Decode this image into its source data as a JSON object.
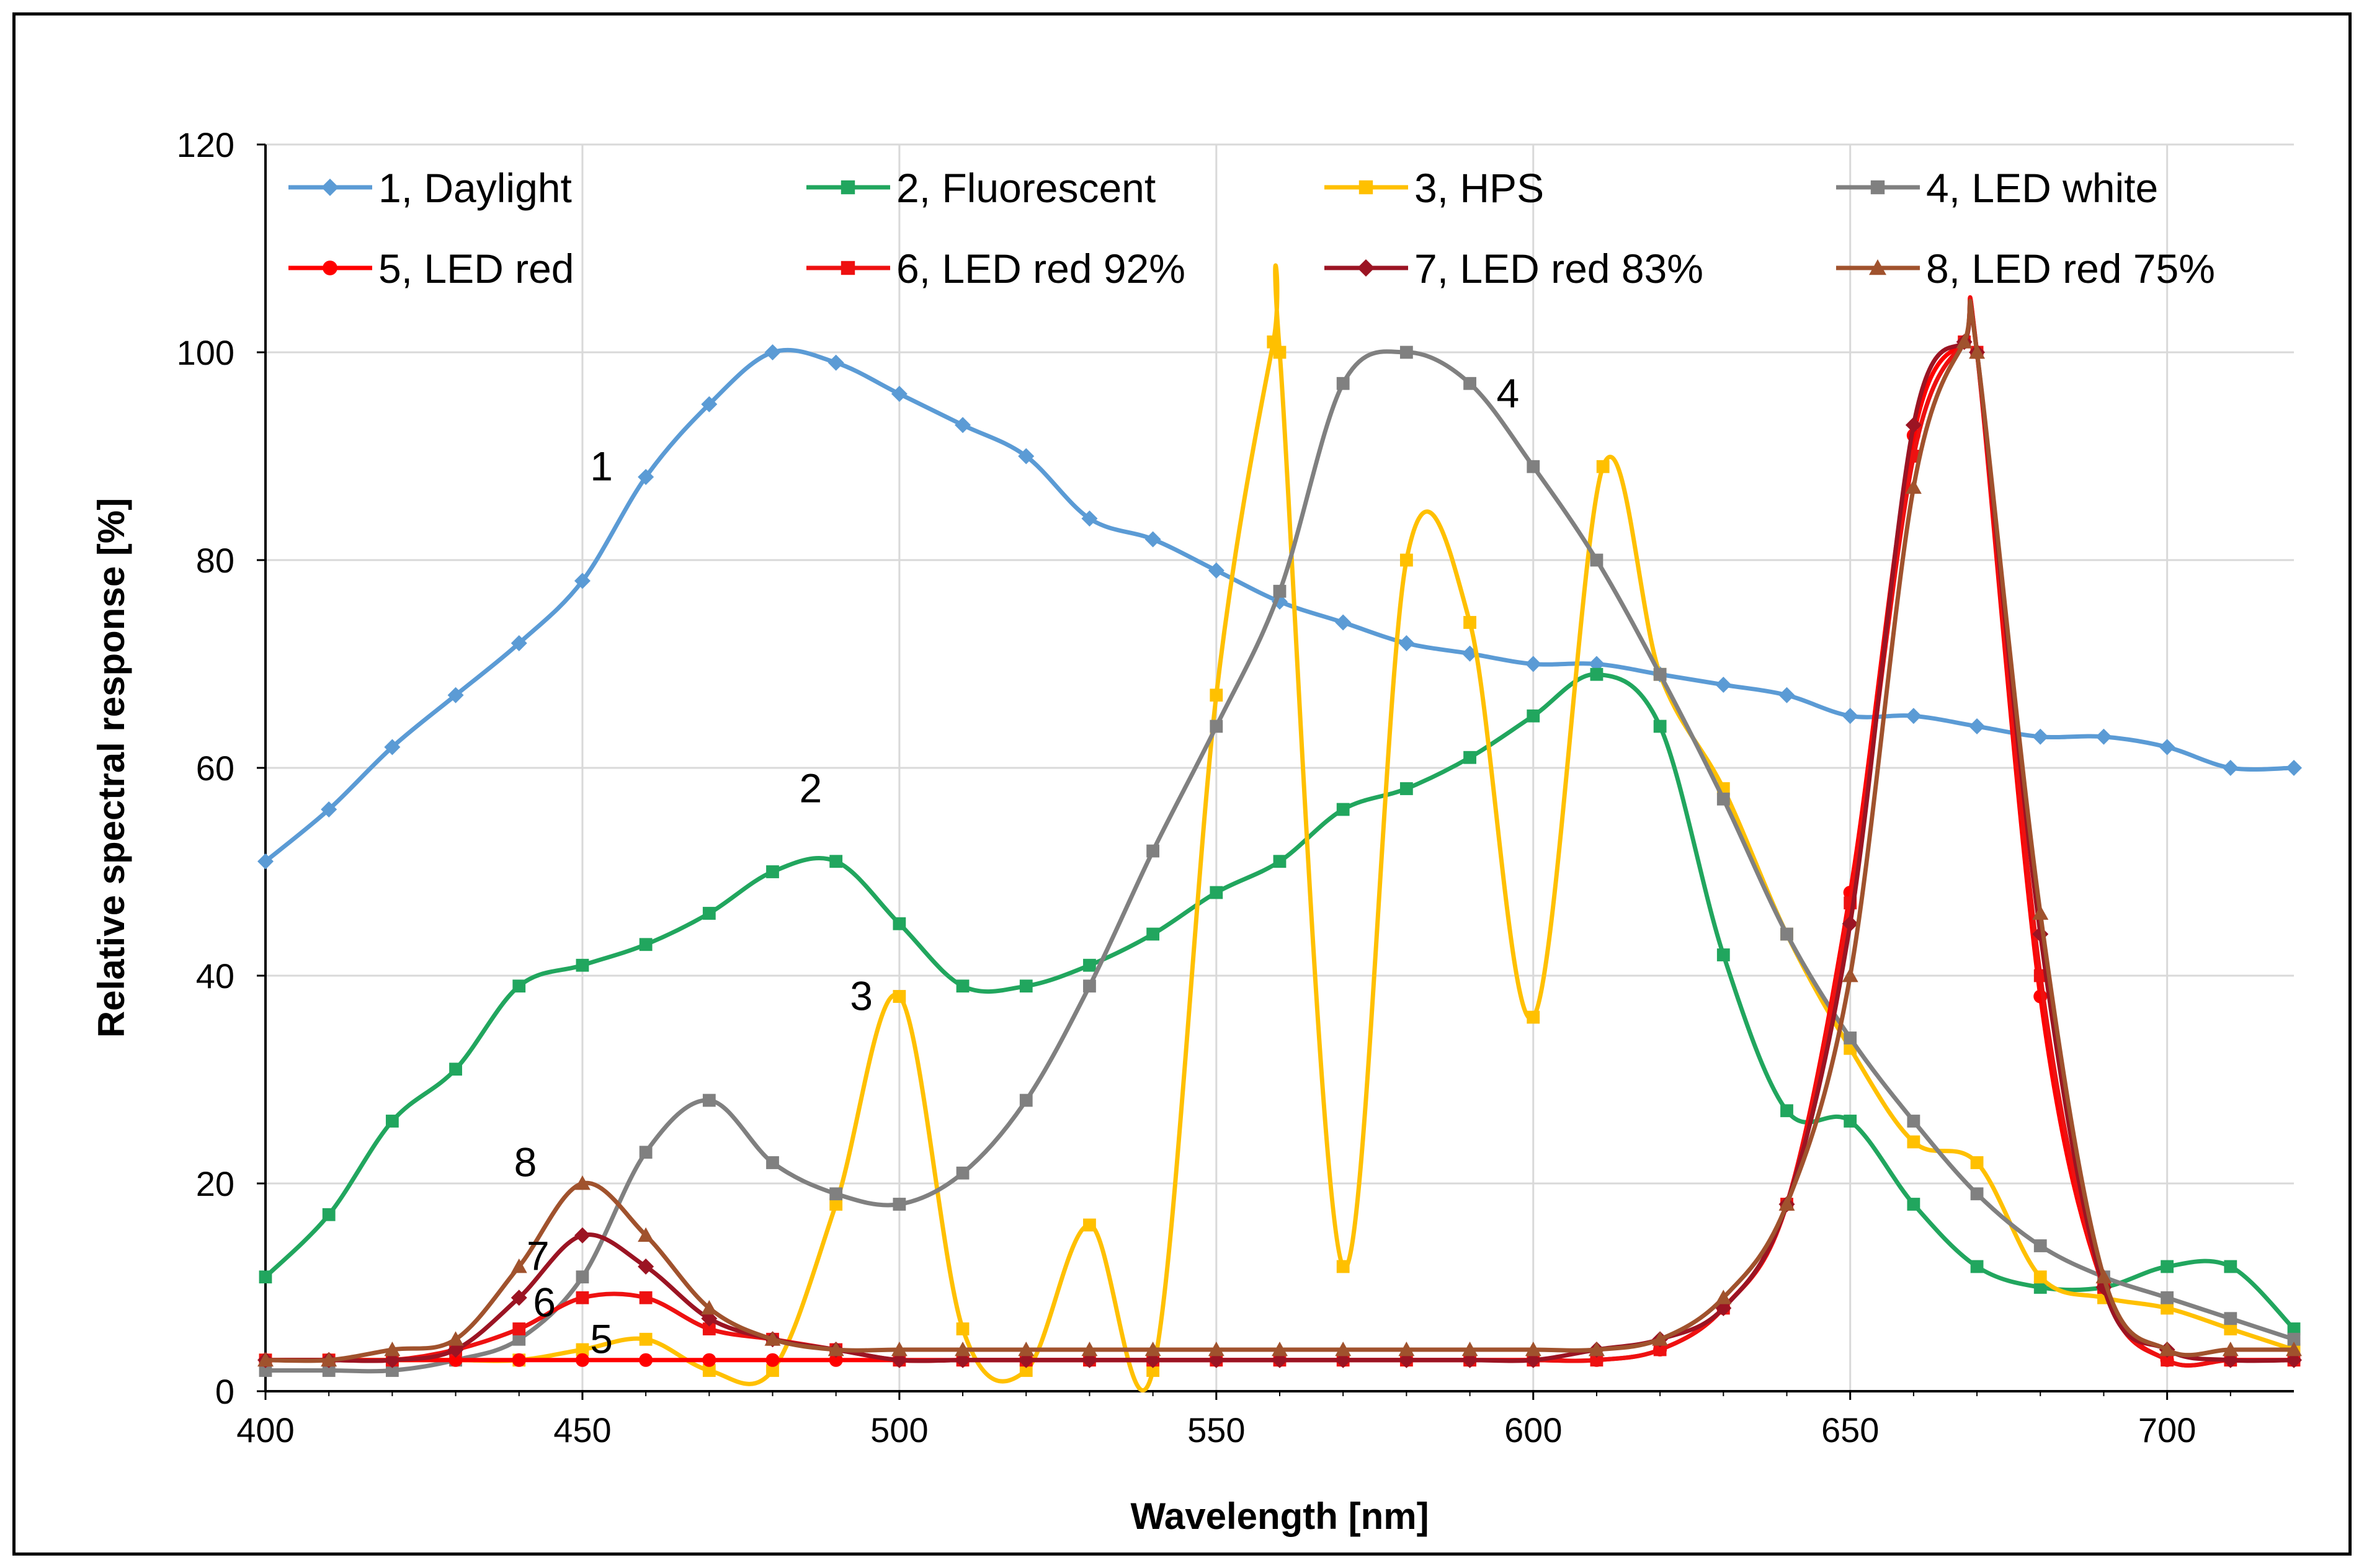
{
  "chart_data": {
    "type": "line",
    "title": "",
    "xlabel": "Wavelength [nm]",
    "ylabel": "Relative spectral response [%]",
    "xlim": [
      400,
      720
    ],
    "ylim": [
      0,
      120
    ],
    "xticks": [
      400,
      450,
      500,
      550,
      600,
      650,
      700
    ],
    "yticks": [
      0,
      20,
      40,
      60,
      80,
      100,
      120
    ],
    "grid": true,
    "legend_position": "top",
    "series": [
      {
        "name": "1, Daylight",
        "color": "#5B9BD5",
        "marker": "diamond",
        "label": "1",
        "points": [
          [
            400,
            51
          ],
          [
            410,
            56
          ],
          [
            420,
            62
          ],
          [
            430,
            67
          ],
          [
            440,
            72
          ],
          [
            450,
            78
          ],
          [
            460,
            88
          ],
          [
            470,
            95
          ],
          [
            480,
            100
          ],
          [
            490,
            99
          ],
          [
            500,
            96
          ],
          [
            510,
            93
          ],
          [
            520,
            90
          ],
          [
            530,
            84
          ],
          [
            540,
            82
          ],
          [
            550,
            79
          ],
          [
            560,
            76
          ],
          [
            570,
            74
          ],
          [
            580,
            72
          ],
          [
            590,
            71
          ],
          [
            600,
            70
          ],
          [
            610,
            70
          ],
          [
            620,
            69
          ],
          [
            630,
            68
          ],
          [
            640,
            67
          ],
          [
            650,
            65
          ],
          [
            660,
            65
          ],
          [
            670,
            64
          ],
          [
            680,
            63
          ],
          [
            690,
            63
          ],
          [
            700,
            62
          ],
          [
            710,
            60
          ],
          [
            720,
            60
          ]
        ]
      },
      {
        "name": "2, Fluorescent",
        "color": "#21A65E",
        "marker": "square",
        "label": "2",
        "points": [
          [
            400,
            11
          ],
          [
            410,
            17
          ],
          [
            420,
            26
          ],
          [
            430,
            31
          ],
          [
            440,
            39
          ],
          [
            450,
            41
          ],
          [
            460,
            43
          ],
          [
            470,
            46
          ],
          [
            480,
            50
          ],
          [
            490,
            51
          ],
          [
            500,
            45
          ],
          [
            510,
            39
          ],
          [
            520,
            39
          ],
          [
            530,
            41
          ],
          [
            540,
            44
          ],
          [
            550,
            48
          ],
          [
            560,
            51
          ],
          [
            570,
            56
          ],
          [
            580,
            58
          ],
          [
            590,
            61
          ],
          [
            600,
            65
          ],
          [
            610,
            69
          ],
          [
            620,
            64
          ],
          [
            630,
            42
          ],
          [
            640,
            27
          ],
          [
            650,
            26
          ],
          [
            660,
            18
          ],
          [
            670,
            12
          ],
          [
            680,
            10
          ],
          [
            690,
            10
          ],
          [
            700,
            12
          ],
          [
            710,
            12
          ],
          [
            720,
            6
          ]
        ]
      },
      {
        "name": "3, HPS",
        "color": "#FFC000",
        "marker": "square",
        "label": "3",
        "points": [
          [
            400,
            3
          ],
          [
            410,
            3
          ],
          [
            420,
            3
          ],
          [
            430,
            3
          ],
          [
            440,
            3
          ],
          [
            450,
            4
          ],
          [
            460,
            5
          ],
          [
            470,
            2
          ],
          [
            480,
            2
          ],
          [
            490,
            18
          ],
          [
            500,
            38
          ],
          [
            510,
            6
          ],
          [
            520,
            2
          ],
          [
            530,
            16
          ],
          [
            540,
            2
          ],
          [
            550,
            67
          ],
          [
            559,
            101
          ],
          [
            560,
            100
          ],
          [
            570,
            12
          ],
          [
            580,
            80
          ],
          [
            590,
            74
          ],
          [
            600,
            36
          ],
          [
            611,
            89
          ],
          [
            620,
            69
          ],
          [
            630,
            58
          ],
          [
            640,
            44
          ],
          [
            650,
            33
          ],
          [
            660,
            24
          ],
          [
            670,
            22
          ],
          [
            680,
            11
          ],
          [
            690,
            9
          ],
          [
            700,
            8
          ],
          [
            710,
            6
          ],
          [
            720,
            4
          ]
        ]
      },
      {
        "name": "4, LED white",
        "color": "#808080",
        "marker": "square",
        "label": "4",
        "points": [
          [
            400,
            2
          ],
          [
            410,
            2
          ],
          [
            420,
            2
          ],
          [
            430,
            3
          ],
          [
            440,
            5
          ],
          [
            450,
            11
          ],
          [
            460,
            23
          ],
          [
            470,
            28
          ],
          [
            480,
            22
          ],
          [
            490,
            19
          ],
          [
            500,
            18
          ],
          [
            510,
            21
          ],
          [
            520,
            28
          ],
          [
            530,
            39
          ],
          [
            540,
            52
          ],
          [
            550,
            64
          ],
          [
            560,
            77
          ],
          [
            570,
            97
          ],
          [
            580,
            100
          ],
          [
            590,
            97
          ],
          [
            600,
            89
          ],
          [
            610,
            80
          ],
          [
            620,
            69
          ],
          [
            630,
            57
          ],
          [
            640,
            44
          ],
          [
            650,
            34
          ],
          [
            660,
            26
          ],
          [
            670,
            19
          ],
          [
            680,
            14
          ],
          [
            690,
            11
          ],
          [
            700,
            9
          ],
          [
            710,
            7
          ],
          [
            720,
            5
          ]
        ]
      },
      {
        "name": "5, LED red",
        "color": "#FF0000",
        "marker": "circle",
        "label": "5",
        "points": [
          [
            400,
            3
          ],
          [
            410,
            3
          ],
          [
            420,
            3
          ],
          [
            430,
            3
          ],
          [
            440,
            3
          ],
          [
            450,
            3
          ],
          [
            460,
            3
          ],
          [
            470,
            3
          ],
          [
            480,
            3
          ],
          [
            490,
            3
          ],
          [
            500,
            3
          ],
          [
            510,
            3
          ],
          [
            520,
            3
          ],
          [
            530,
            3
          ],
          [
            540,
            3
          ],
          [
            550,
            3
          ],
          [
            560,
            3
          ],
          [
            570,
            3
          ],
          [
            580,
            3
          ],
          [
            590,
            3
          ],
          [
            600,
            3
          ],
          [
            610,
            3
          ],
          [
            620,
            4
          ],
          [
            630,
            8
          ],
          [
            640,
            18
          ],
          [
            650,
            48
          ],
          [
            660,
            92
          ],
          [
            668,
            101
          ],
          [
            670,
            100
          ],
          [
            680,
            38
          ],
          [
            690,
            10
          ],
          [
            700,
            3
          ],
          [
            710,
            3
          ],
          [
            720,
            3
          ]
        ]
      },
      {
        "name": "6, LED red 92%",
        "color": "#EE1111",
        "marker": "square",
        "label": "6",
        "points": [
          [
            400,
            3
          ],
          [
            410,
            3
          ],
          [
            420,
            3
          ],
          [
            430,
            4
          ],
          [
            440,
            6
          ],
          [
            450,
            9
          ],
          [
            460,
            9
          ],
          [
            470,
            6
          ],
          [
            480,
            5
          ],
          [
            490,
            4
          ],
          [
            500,
            3
          ],
          [
            510,
            3
          ],
          [
            520,
            3
          ],
          [
            530,
            3
          ],
          [
            540,
            3
          ],
          [
            550,
            3
          ],
          [
            560,
            3
          ],
          [
            570,
            3
          ],
          [
            580,
            3
          ],
          [
            590,
            3
          ],
          [
            600,
            3
          ],
          [
            610,
            3
          ],
          [
            620,
            4
          ],
          [
            630,
            8
          ],
          [
            640,
            18
          ],
          [
            650,
            47
          ],
          [
            660,
            90
          ],
          [
            668,
            101
          ],
          [
            670,
            100
          ],
          [
            680,
            40
          ],
          [
            690,
            10
          ],
          [
            700,
            3
          ],
          [
            710,
            3
          ],
          [
            720,
            3
          ]
        ]
      },
      {
        "name": "7, LED red 83%",
        "color": "#9B1423",
        "marker": "diamond",
        "label": "7",
        "points": [
          [
            400,
            3
          ],
          [
            410,
            3
          ],
          [
            420,
            3
          ],
          [
            430,
            4
          ],
          [
            440,
            9
          ],
          [
            450,
            15
          ],
          [
            460,
            12
          ],
          [
            470,
            7
          ],
          [
            480,
            5
          ],
          [
            490,
            4
          ],
          [
            500,
            3
          ],
          [
            510,
            3
          ],
          [
            520,
            3
          ],
          [
            530,
            3
          ],
          [
            540,
            3
          ],
          [
            550,
            3
          ],
          [
            560,
            3
          ],
          [
            570,
            3
          ],
          [
            580,
            3
          ],
          [
            590,
            3
          ],
          [
            600,
            3
          ],
          [
            610,
            4
          ],
          [
            620,
            5
          ],
          [
            630,
            8
          ],
          [
            640,
            18
          ],
          [
            650,
            45
          ],
          [
            660,
            93
          ],
          [
            668,
            101
          ],
          [
            670,
            100
          ],
          [
            680,
            44
          ],
          [
            690,
            10
          ],
          [
            700,
            4
          ],
          [
            710,
            3
          ],
          [
            720,
            3
          ]
        ]
      },
      {
        "name": "8, LED red 75%",
        "color": "#A0522D",
        "marker": "triangle",
        "label": "8",
        "points": [
          [
            400,
            3
          ],
          [
            410,
            3
          ],
          [
            420,
            4
          ],
          [
            430,
            5
          ],
          [
            440,
            12
          ],
          [
            450,
            20
          ],
          [
            460,
            15
          ],
          [
            470,
            8
          ],
          [
            480,
            5
          ],
          [
            490,
            4
          ],
          [
            500,
            4
          ],
          [
            510,
            4
          ],
          [
            520,
            4
          ],
          [
            530,
            4
          ],
          [
            540,
            4
          ],
          [
            550,
            4
          ],
          [
            560,
            4
          ],
          [
            570,
            4
          ],
          [
            580,
            4
          ],
          [
            590,
            4
          ],
          [
            600,
            4
          ],
          [
            610,
            4
          ],
          [
            620,
            5
          ],
          [
            630,
            9
          ],
          [
            640,
            18
          ],
          [
            650,
            40
          ],
          [
            660,
            87
          ],
          [
            668,
            101
          ],
          [
            670,
            100
          ],
          [
            680,
            46
          ],
          [
            690,
            11
          ],
          [
            700,
            4
          ],
          [
            710,
            4
          ],
          [
            720,
            4
          ]
        ]
      }
    ],
    "annotations": [
      {
        "text": "1",
        "x": 453,
        "y": 89
      },
      {
        "text": "2",
        "x": 486,
        "y": 58
      },
      {
        "text": "3",
        "x": 494,
        "y": 38
      },
      {
        "text": "4",
        "x": 596,
        "y": 96
      },
      {
        "text": "8",
        "x": 441,
        "y": 22
      },
      {
        "text": "7",
        "x": 443,
        "y": 13
      },
      {
        "text": "6",
        "x": 444,
        "y": 8.5
      },
      {
        "text": "5",
        "x": 453,
        "y": 5
      }
    ]
  }
}
